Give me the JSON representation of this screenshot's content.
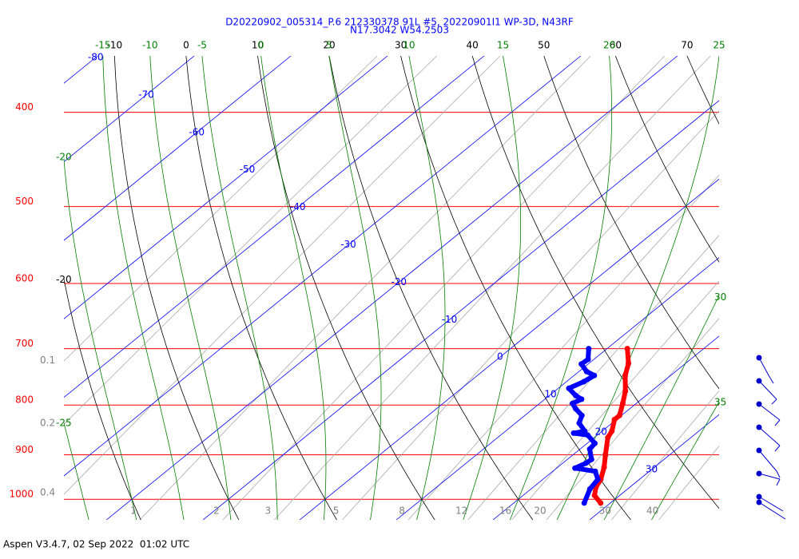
{
  "chart_data": {
    "type": "skewt",
    "title": "D20220902_005314_P.6 212330378 91L #5, 20220901I1 WP-3D, N43RF",
    "subtitle": "N17.3042 W54.2503",
    "footer": "Aspen V3.4.7, 02 Sep 2022  01:02 UTC",
    "ylim": [
      1050,
      350
    ],
    "ylog": true,
    "yticks": [
      400,
      500,
      600,
      700,
      800,
      900,
      1000
    ],
    "isobar_color": "#ff0000",
    "xlim": [
      -24.4,
      43.4
    ],
    "isotherms": {
      "color": "#0000ff",
      "values": [
        -80,
        -70,
        -60,
        -50,
        -40,
        -30,
        -20,
        -10,
        0,
        10,
        20,
        30
      ]
    },
    "dry_adiabats": {
      "color": "#000000",
      "values": [
        -20,
        -10,
        0,
        10,
        20,
        30,
        40,
        50,
        60,
        70
      ]
    },
    "moist_adiabats": {
      "color": "#008000",
      "values": [
        -25,
        -20,
        -15,
        -10,
        -5,
        0,
        5,
        10,
        15,
        20,
        25,
        30,
        35
      ]
    },
    "mixing_ratios": {
      "color": "#808080",
      "values": [
        0.1,
        0.2,
        0.4,
        1,
        2,
        3,
        5,
        8,
        12,
        16,
        20,
        30,
        40
      ]
    },
    "series": [
      {
        "color": "#ff0000",
        "pressure": [
          700,
          725,
          746,
          774,
          797,
          820,
          828,
          851,
          864,
          901,
          927,
          954,
          972,
          991,
          1009
        ],
        "values": [
          12.1,
          14.1,
          15.3,
          17.3,
          18.6,
          19.8,
          19.8,
          21.0,
          21.4,
          23.4,
          24.8,
          26.0,
          26.5,
          27.4,
          29.0
        ]
      },
      {
        "color": "#0000ff",
        "pressure": [
          700,
          718,
          726,
          739,
          746,
          757,
          769,
          782,
          789,
          797,
          807,
          820,
          835,
          851,
          855,
          859,
          876,
          888,
          910,
          918,
          929,
          936,
          954,
          976,
          1009
        ],
        "values": [
          8.1,
          9.4,
          9.3,
          10.8,
          12.1,
          11.8,
          11.1,
          12.7,
          13.8,
          13.4,
          14.4,
          15.9,
          16.6,
          18.2,
          17.3,
          19.0,
          20.8,
          21.0,
          22.5,
          22.4,
          21.9,
          24.4,
          25.7,
          26.1,
          27.3
        ]
      }
    ]
  }
}
